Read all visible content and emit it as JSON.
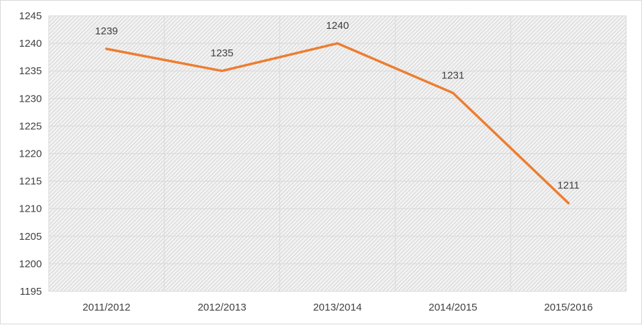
{
  "chart_data": {
    "type": "line",
    "categories": [
      "2011/2012",
      "2012/2013",
      "2013/2014",
      "2014/2015",
      "2015/2016"
    ],
    "series": [
      {
        "values": [
          1239,
          1235,
          1240,
          1231,
          1211
        ],
        "color": "#ED7D31"
      }
    ],
    "data_labels": [
      "1239",
      "1235",
      "1240",
      "1231",
      "1211"
    ],
    "ylim": [
      1195,
      1245
    ],
    "ytick_labels": [
      "1195",
      "1200",
      "1205",
      "1210",
      "1215",
      "1220",
      "1225",
      "1230",
      "1235",
      "1240",
      "1245"
    ],
    "title": "",
    "xlabel": "",
    "ylabel": "",
    "grid": true,
    "legend": "none",
    "plot_background": "hatched-gray"
  }
}
